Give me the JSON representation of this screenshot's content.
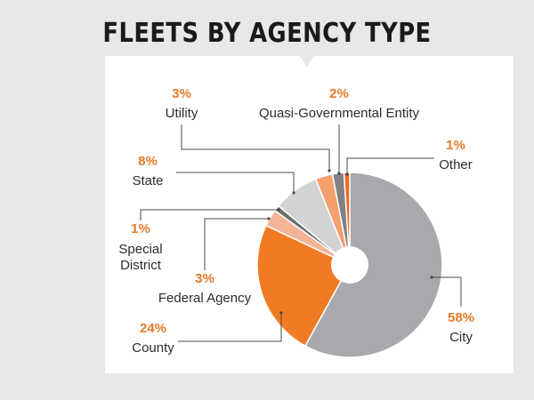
{
  "title": "FLEETS BY AGENCY TYPE",
  "colors": {
    "background": "#e8e8e8",
    "panel": "#ffffff",
    "accent": "#e8792a",
    "city": "#a7a9ac",
    "county": "#f07b22",
    "federal": "#f6b497",
    "special_district": "#6d6e70",
    "state": "#d1d3d4",
    "utility": "#f49f6c",
    "quasi": "#808285",
    "other": "#f26a24"
  },
  "chart_data": {
    "type": "pie",
    "donut": true,
    "title": "FLEETS BY AGENCY TYPE",
    "start": "12 o'clock",
    "direction": "clockwise",
    "slices": [
      {
        "key": "city",
        "name": "City",
        "pct_label": "58%",
        "value": 58
      },
      {
        "key": "county",
        "name": "County",
        "pct_label": "24%",
        "value": 24
      },
      {
        "key": "federal",
        "name": "Federal Agency",
        "pct_label": "3%",
        "value": 3
      },
      {
        "key": "special_district",
        "name": "Special District",
        "name_lines": [
          "Special",
          "District"
        ],
        "pct_label": "1%",
        "value": 1
      },
      {
        "key": "state",
        "name": "State",
        "pct_label": "8%",
        "value": 8
      },
      {
        "key": "utility",
        "name": "Utility",
        "pct_label": "3%",
        "value": 3
      },
      {
        "key": "quasi",
        "name": "Quasi-Governmental Entity",
        "pct_label": "2%",
        "value": 2
      },
      {
        "key": "other",
        "name": "Other",
        "pct_label": "1%",
        "value": 1
      }
    ]
  }
}
